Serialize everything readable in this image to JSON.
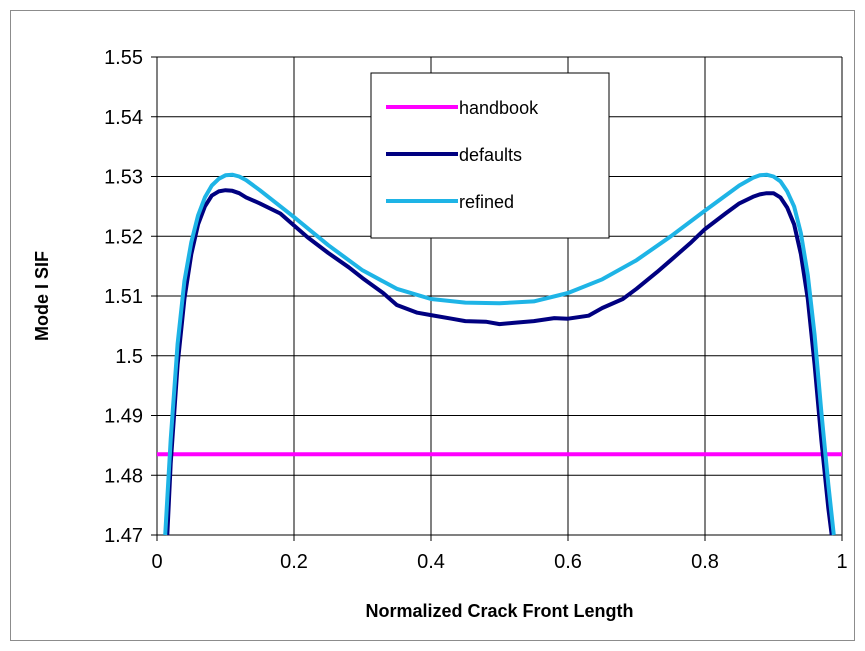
{
  "chart_data": {
    "type": "line",
    "title": "",
    "xlabel": "Normalized Crack Front Length",
    "ylabel": "Mode I SIF",
    "xlim": [
      0,
      1
    ],
    "ylim": [
      1.47,
      1.55
    ],
    "x_ticks": [
      "0",
      "0.2",
      "0.4",
      "0.6",
      "0.8",
      "1"
    ],
    "y_ticks": [
      "1.47",
      "1.48",
      "1.49",
      "1.5",
      "1.51",
      "1.52",
      "1.53",
      "1.54",
      "1.55"
    ],
    "grid": true,
    "legend_position": "top-center",
    "series": [
      {
        "name": "handbook",
        "color": "#ff00ff",
        "x": [
          0.0,
          1.0
        ],
        "y": [
          1.4835,
          1.4835
        ]
      },
      {
        "name": "defaults",
        "color": "#000080",
        "x": [
          0.015,
          0.02,
          0.03,
          0.04,
          0.05,
          0.06,
          0.07,
          0.08,
          0.09,
          0.1,
          0.11,
          0.12,
          0.13,
          0.15,
          0.18,
          0.2,
          0.22,
          0.25,
          0.28,
          0.3,
          0.33,
          0.35,
          0.38,
          0.4,
          0.43,
          0.45,
          0.48,
          0.5,
          0.52,
          0.55,
          0.58,
          0.6,
          0.63,
          0.65,
          0.68,
          0.7,
          0.73,
          0.75,
          0.78,
          0.8,
          0.83,
          0.85,
          0.87,
          0.88,
          0.89,
          0.9,
          0.91,
          0.92,
          0.93,
          0.94,
          0.95,
          0.96,
          0.97,
          0.98,
          0.985
        ],
        "y": [
          1.47,
          1.482,
          1.4985,
          1.5095,
          1.517,
          1.522,
          1.525,
          1.5268,
          1.5275,
          1.5277,
          1.5276,
          1.5272,
          1.5265,
          1.5255,
          1.5238,
          1.5218,
          1.5198,
          1.5172,
          1.5148,
          1.513,
          1.5105,
          1.5085,
          1.5072,
          1.5068,
          1.5062,
          1.5058,
          1.5057,
          1.5053,
          1.5055,
          1.5058,
          1.5063,
          1.5062,
          1.5067,
          1.508,
          1.5095,
          1.5112,
          1.514,
          1.516,
          1.519,
          1.5212,
          1.5238,
          1.5255,
          1.5266,
          1.527,
          1.5272,
          1.5272,
          1.5265,
          1.5248,
          1.522,
          1.517,
          1.5095,
          1.4985,
          1.4858,
          1.4745,
          1.47
        ]
      },
      {
        "name": "refined",
        "color": "#1eb4e6",
        "x": [
          0.012,
          0.02,
          0.03,
          0.04,
          0.05,
          0.06,
          0.07,
          0.08,
          0.09,
          0.1,
          0.11,
          0.12,
          0.13,
          0.15,
          0.2,
          0.25,
          0.3,
          0.35,
          0.4,
          0.45,
          0.5,
          0.55,
          0.6,
          0.65,
          0.7,
          0.75,
          0.8,
          0.85,
          0.87,
          0.88,
          0.89,
          0.9,
          0.91,
          0.92,
          0.93,
          0.94,
          0.95,
          0.96,
          0.97,
          0.98,
          0.988
        ],
        "y": [
          1.47,
          1.486,
          1.502,
          1.5125,
          1.519,
          1.5235,
          1.5265,
          1.5285,
          1.5296,
          1.5302,
          1.5303,
          1.53,
          1.5294,
          1.5277,
          1.5232,
          1.5185,
          1.5143,
          1.5112,
          1.5095,
          1.5089,
          1.5088,
          1.5091,
          1.5105,
          1.5128,
          1.516,
          1.52,
          1.5243,
          1.5285,
          1.5298,
          1.5302,
          1.5303,
          1.53,
          1.5292,
          1.5275,
          1.525,
          1.5205,
          1.5135,
          1.5035,
          1.4905,
          1.4785,
          1.47
        ]
      }
    ]
  }
}
